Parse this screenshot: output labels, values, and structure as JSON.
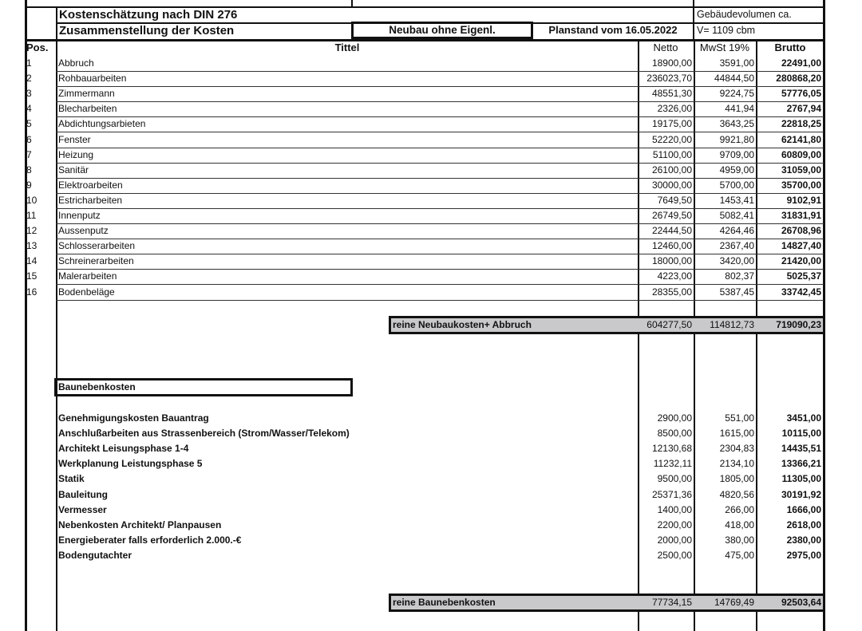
{
  "header": {
    "title1": "Kostenschätzung nach DIN 276",
    "title2": "Zusammenstellung der Kosten",
    "variant": "Neubau ohne Eigenl.",
    "planstand": "Planstand vom 16.05.2022",
    "volume_label": "Gebäudevolumen ca.",
    "volume_value": "V= 1109 cbm"
  },
  "columns": {
    "pos": "Pos.",
    "title": "Tittel",
    "netto": "Netto",
    "mwst": "MwSt 19%",
    "brutto": "Brutto"
  },
  "items": [
    {
      "pos": "1",
      "title": "Abbruch",
      "netto": "18900,00",
      "mwst": "3591,00",
      "brutto": "22491,00"
    },
    {
      "pos": "2",
      "title": "Rohbauarbeiten",
      "netto": "236023,70",
      "mwst": "44844,50",
      "brutto": "280868,20"
    },
    {
      "pos": "3",
      "title": "Zimmermann",
      "netto": "48551,30",
      "mwst": "9224,75",
      "brutto": "57776,05"
    },
    {
      "pos": "4",
      "title": "Blecharbeiten",
      "netto": "2326,00",
      "mwst": "441,94",
      "brutto": "2767,94"
    },
    {
      "pos": "5",
      "title": "Abdichtungsarbieten",
      "netto": "19175,00",
      "mwst": "3643,25",
      "brutto": "22818,25"
    },
    {
      "pos": "6",
      "title": "Fenster",
      "netto": "52220,00",
      "mwst": "9921,80",
      "brutto": "62141,80"
    },
    {
      "pos": "7",
      "title": "Heizung",
      "netto": "51100,00",
      "mwst": "9709,00",
      "brutto": "60809,00"
    },
    {
      "pos": "8",
      "title": "Sanitär",
      "netto": "26100,00",
      "mwst": "4959,00",
      "brutto": "31059,00"
    },
    {
      "pos": "9",
      "title": "Elektroarbeiten",
      "netto": "30000,00",
      "mwst": "5700,00",
      "brutto": "35700,00"
    },
    {
      "pos": "10",
      "title": "Estricharbeiten",
      "netto": "7649,50",
      "mwst": "1453,41",
      "brutto": "9102,91"
    },
    {
      "pos": "11",
      "title": "Innenputz",
      "netto": "26749,50",
      "mwst": "5082,41",
      "brutto": "31831,91"
    },
    {
      "pos": "12",
      "title": "Aussenputz",
      "netto": "22444,50",
      "mwst": "4264,46",
      "brutto": "26708,96"
    },
    {
      "pos": "13",
      "title": "Schlosserarbeiten",
      "netto": "12460,00",
      "mwst": "2367,40",
      "brutto": "14827,40"
    },
    {
      "pos": "14",
      "title": "Schreinerarbeiten",
      "netto": "18000,00",
      "mwst": "3420,00",
      "brutto": "21420,00"
    },
    {
      "pos": "15",
      "title": "Malerarbeiten",
      "netto": "4223,00",
      "mwst": "802,37",
      "brutto": "5025,37"
    },
    {
      "pos": "16",
      "title": "Bodenbeläge",
      "netto": "28355,00",
      "mwst": "5387,45",
      "brutto": "33742,45"
    }
  ],
  "subtotal_building": {
    "label": "reine Neubaukosten+ Abbruch",
    "netto": "604277,50",
    "mwst": "114812,73",
    "brutto": "719090,23"
  },
  "side_costs": {
    "heading": "Baunebenkosten",
    "items": [
      {
        "title": "Genehmigungskosten Bauantrag",
        "netto": "2900,00",
        "mwst": "551,00",
        "brutto": "3451,00"
      },
      {
        "title": "Anschlußarbeiten aus Strassenbereich (Strom/Wasser/Telekom)",
        "netto": "8500,00",
        "mwst": "1615,00",
        "brutto": "10115,00"
      },
      {
        "title": "Architekt Leisungsphase 1-4",
        "netto": "12130,68",
        "mwst": "2304,83",
        "brutto": "14435,51"
      },
      {
        "title": "Werkplanung Leistungsphase 5",
        "netto": "11232,11",
        "mwst": "2134,10",
        "brutto": "13366,21"
      },
      {
        "title": "Statik",
        "netto": "9500,00",
        "mwst": "1805,00",
        "brutto": "11305,00"
      },
      {
        "title": "Bauleitung",
        "netto": "25371,36",
        "mwst": "4820,56",
        "brutto": "30191,92"
      },
      {
        "title": "Vermesser",
        "netto": "1400,00",
        "mwst": "266,00",
        "brutto": "1666,00"
      },
      {
        "title": "Nebenkosten Architekt/ Planpausen",
        "netto": "2200,00",
        "mwst": "418,00",
        "brutto": "2618,00"
      },
      {
        "title": "Energieberater  falls erforderlich 2.000.-€",
        "netto": "2000,00",
        "mwst": "380,00",
        "brutto": "2380,00"
      },
      {
        "title": "Bodengutachter",
        "netto": "2500,00",
        "mwst": "475,00",
        "brutto": "2975,00"
      }
    ],
    "total": {
      "label": "reine Baunebenkosten",
      "netto": "77734,15",
      "mwst": "14769,49",
      "brutto": "92503,64"
    }
  },
  "colors": {
    "subtotal_fill": "#c9c9cb",
    "lines": "#111111"
  }
}
